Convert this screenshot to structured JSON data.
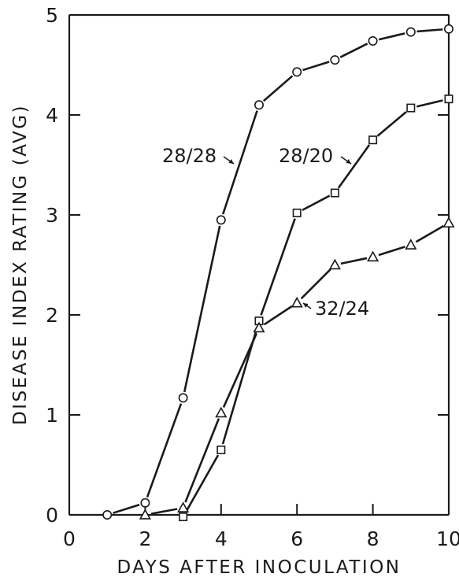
{
  "chart_data": {
    "type": "line",
    "xlabel": "DAYS AFTER INOCULATION",
    "ylabel": "DISEASE INDEX RATING (AVG)",
    "xlim": [
      0,
      10
    ],
    "ylim": [
      0,
      5
    ],
    "xticks": [
      "0",
      "2",
      "4",
      "6",
      "8",
      "10"
    ],
    "yticks": [
      "0",
      "1",
      "2",
      "3",
      "4",
      "5"
    ],
    "grid": false,
    "legend": "none",
    "series": [
      {
        "name": "28/28",
        "marker": "circle",
        "x": [
          1,
          2,
          3,
          4,
          5,
          6,
          7,
          8,
          9,
          10
        ],
        "y": [
          0.0,
          0.12,
          1.17,
          2.95,
          4.1,
          4.43,
          4.55,
          4.74,
          4.83,
          4.86
        ]
      },
      {
        "name": "28/20",
        "marker": "square",
        "x": [
          3,
          4,
          5,
          6,
          7,
          8,
          9,
          10
        ],
        "y": [
          -0.02,
          0.65,
          1.94,
          3.02,
          3.22,
          3.75,
          4.07,
          4.16
        ]
      },
      {
        "name": "32/24",
        "marker": "triangle",
        "x": [
          2,
          3,
          4,
          5,
          6,
          7,
          8,
          9,
          10
        ],
        "y": [
          0.0,
          0.07,
          1.02,
          1.87,
          2.12,
          2.5,
          2.58,
          2.7,
          2.92
        ]
      }
    ]
  }
}
